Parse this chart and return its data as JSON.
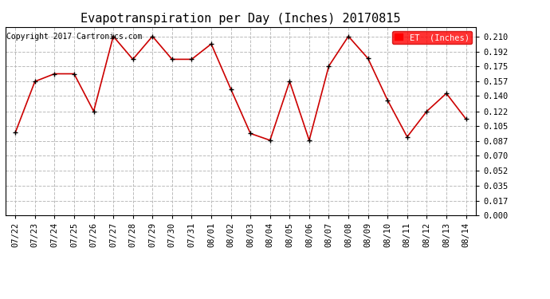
{
  "title": "Evapotranspiration per Day (Inches) 20170815",
  "copyright_text": "Copyright 2017 Cartronics.com",
  "legend_label": "ET  (Inches)",
  "legend_bg": "#ff0000",
  "legend_text_color": "#ffffff",
  "dates": [
    "07/22",
    "07/23",
    "07/24",
    "07/25",
    "07/26",
    "07/27",
    "07/28",
    "07/29",
    "07/30",
    "07/31",
    "08/01",
    "08/02",
    "08/03",
    "08/04",
    "08/05",
    "08/06",
    "08/07",
    "08/08",
    "08/09",
    "08/10",
    "08/11",
    "08/12",
    "08/13",
    "08/14"
  ],
  "values": [
    0.097,
    0.157,
    0.166,
    0.166,
    0.122,
    0.21,
    0.183,
    0.21,
    0.183,
    0.183,
    0.201,
    0.148,
    0.096,
    0.088,
    0.157,
    0.088,
    0.175,
    0.21,
    0.184,
    0.135,
    0.092,
    0.122,
    0.143,
    0.113
  ],
  "line_color": "#cc0000",
  "marker": "+",
  "marker_color": "#000000",
  "marker_size": 5,
  "line_width": 1.2,
  "yticks": [
    0.0,
    0.017,
    0.035,
    0.052,
    0.07,
    0.087,
    0.105,
    0.122,
    0.14,
    0.157,
    0.175,
    0.192,
    0.21
  ],
  "ylim": [
    0.0,
    0.221
  ],
  "grid_color": "#bbbbbb",
  "grid_style": "--",
  "bg_color": "#ffffff",
  "title_fontsize": 11,
  "tick_fontsize": 7.5,
  "copyright_fontsize": 7
}
